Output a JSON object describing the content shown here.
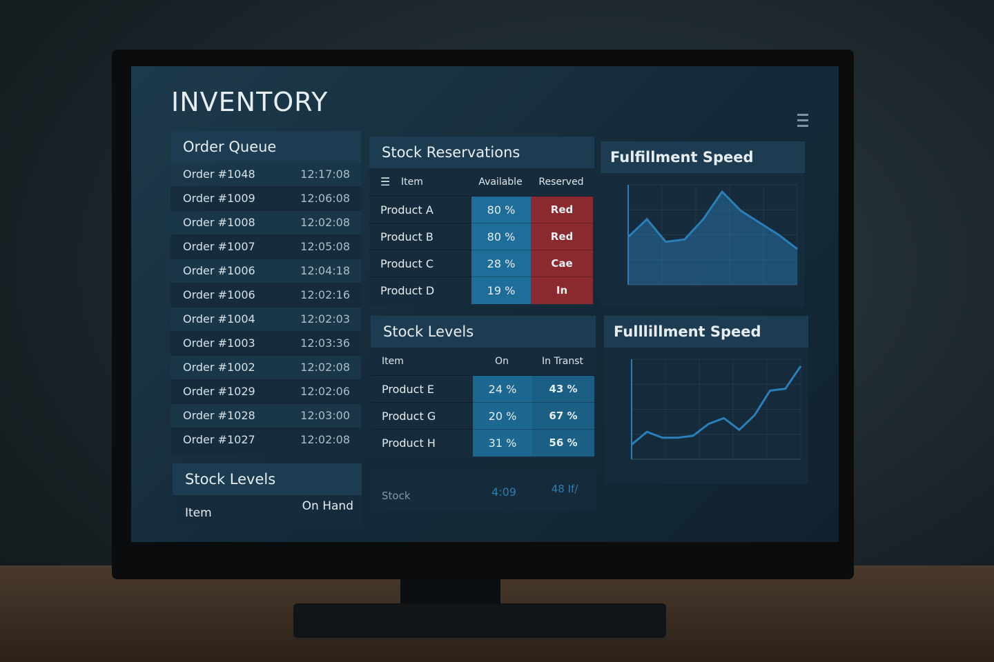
{
  "header": {
    "title": "INVENTORY"
  },
  "order_queue": {
    "title": "Order Queue",
    "rows": [
      [
        "Order #1048",
        "12:17:08"
      ],
      [
        "Order #1009",
        "12:06:08"
      ],
      [
        "Order #1008",
        "12:02:08"
      ],
      [
        "Order #1007",
        "12:05:08"
      ],
      [
        "Order #1006",
        "12:04:18"
      ],
      [
        "Order #1006",
        "12:02:16"
      ],
      [
        "Order #1004",
        "12:02:03"
      ],
      [
        "Order #1003",
        "12:03:36"
      ],
      [
        "Order #1002",
        "12:02:08"
      ],
      [
        "Order #1029",
        "12:02:06"
      ],
      [
        "Order #1028",
        "12:03:00"
      ],
      [
        "Order #1027",
        "12:02:08"
      ]
    ]
  },
  "stock_levels_bottom": {
    "title": "Stock Levels",
    "columns": [
      "Item",
      "On Hand"
    ]
  },
  "stock_reservations": {
    "title": "Stock Reservations",
    "columns": [
      "Item",
      "Available",
      "Reserved"
    ],
    "rows": [
      [
        "Product A",
        "80 %",
        "Red"
      ],
      [
        "Product B",
        "80 %",
        "Red"
      ],
      [
        "Product C",
        "28 %",
        "Cae"
      ],
      [
        "Product D",
        "19 %",
        "In"
      ]
    ]
  },
  "stock_levels": {
    "title": "Stock Levels",
    "columns": [
      "Item",
      "On",
      "In Transt"
    ],
    "rows": [
      [
        "Product E",
        "24 %",
        "43 %"
      ],
      [
        "Product G",
        "20 %",
        "67 %"
      ],
      [
        "Product H",
        "31 %",
        "56 %"
      ]
    ],
    "footer": [
      "Stock",
      "4:09",
      "48 If/"
    ]
  },
  "charts": [
    {
      "title": "Fulfillment Speed",
      "type": "area",
      "color": "#2b7fb8",
      "values": [
        40,
        55,
        36,
        38,
        55,
        78,
        62,
        52,
        42,
        30
      ]
    },
    {
      "title": "Fulllillment Speed",
      "type": "line",
      "color": "#2b7fb8",
      "values": [
        15,
        28,
        22,
        22,
        24,
        36,
        42,
        30,
        45,
        70,
        72,
        95
      ]
    }
  ]
}
